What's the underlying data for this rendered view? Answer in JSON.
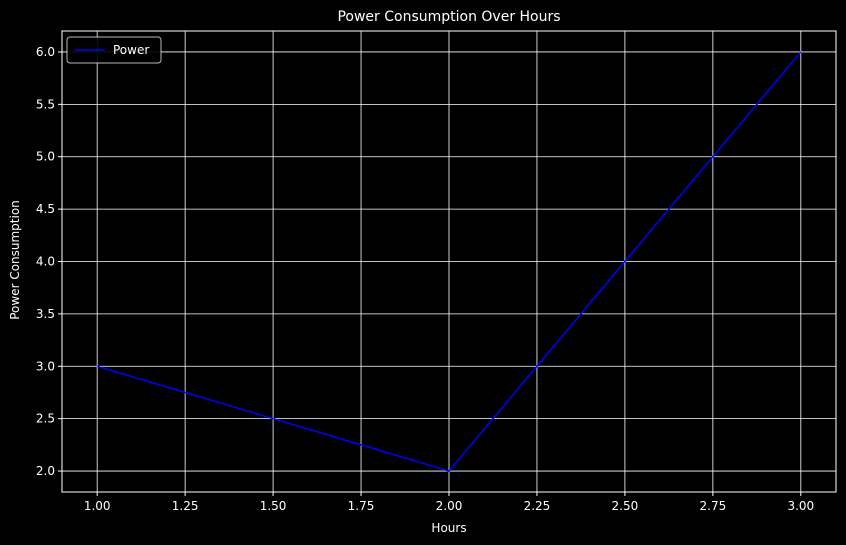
{
  "chart_data": {
    "type": "line",
    "title": "Power Consumption Over Hours",
    "xlabel": "Hours",
    "ylabel": "Power Consumption",
    "xlim": [
      0.9,
      3.1
    ],
    "ylim": [
      1.8,
      6.2
    ],
    "xticks": [
      "1.00",
      "1.25",
      "1.50",
      "1.75",
      "2.00",
      "2.25",
      "2.50",
      "2.75",
      "3.00"
    ],
    "xtick_values": [
      1.0,
      1.25,
      1.5,
      1.75,
      2.0,
      2.25,
      2.5,
      2.75,
      3.0
    ],
    "yticks": [
      "2.0",
      "2.5",
      "3.0",
      "3.5",
      "4.0",
      "4.5",
      "5.0",
      "5.5",
      "6.0"
    ],
    "ytick_values": [
      2.0,
      2.5,
      3.0,
      3.5,
      4.0,
      4.5,
      5.0,
      5.5,
      6.0
    ],
    "grid": true,
    "legend_position": "top-left",
    "series": [
      {
        "name": "Power",
        "color": "#0000ff",
        "x": [
          1,
          2,
          3
        ],
        "y": [
          3,
          2,
          6
        ]
      }
    ],
    "colors": {
      "background": "#000000",
      "foreground": "#ffffff",
      "grid": "#ffffff"
    }
  }
}
